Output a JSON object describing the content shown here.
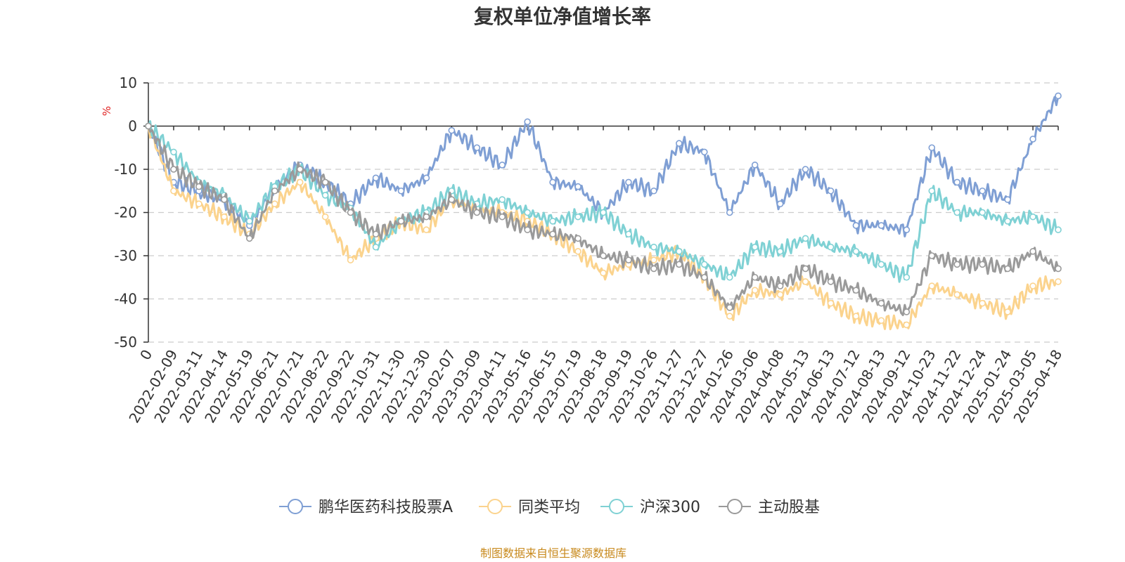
{
  "chart_data": {
    "type": "line",
    "title": "复权单位净值增长率",
    "ylabel": "%",
    "ylim": [
      -50,
      10
    ],
    "yticks": [
      "10",
      "0",
      "-10",
      "-20",
      "-30",
      "-40",
      "-50"
    ],
    "y_tick_values": [
      10,
      0,
      -10,
      -20,
      -30,
      -40,
      -50
    ],
    "grid": true,
    "legend_position": "bottom",
    "source": "制图数据来自恒生聚源数据库",
    "x": [
      "0",
      "2022-02-09",
      "2022-03-11",
      "2022-04-14",
      "2022-05-19",
      "2022-06-21",
      "2022-07-21",
      "2022-08-22",
      "2022-09-22",
      "2022-10-31",
      "2022-11-30",
      "2022-12-30",
      "2023-02-07",
      "2023-03-09",
      "2023-04-11",
      "2023-05-16",
      "2023-06-15",
      "2023-07-19",
      "2023-08-18",
      "2023-09-19",
      "2023-10-26",
      "2023-11-27",
      "2023-12-27",
      "2024-01-26",
      "2024-03-06",
      "2024-04-08",
      "2024-05-13",
      "2024-06-13",
      "2024-07-12",
      "2024-08-13",
      "2024-09-12",
      "2024-10-23",
      "2024-11-22",
      "2024-12-24",
      "2025-01-24",
      "2025-03-05",
      "2025-04-18"
    ],
    "series": [
      {
        "name": "鹏华医药科技股票A",
        "color": "#7f9fd4",
        "values": [
          0,
          -13,
          -15,
          -17,
          -23,
          -14,
          -9,
          -13,
          -18,
          -12,
          -15,
          -12,
          -1,
          -5,
          -9,
          1,
          -13,
          -14,
          -20,
          -13,
          -15,
          -4,
          -6,
          -20,
          -9,
          -18,
          -10,
          -15,
          -23,
          -23,
          -24,
          -5,
          -13,
          -15,
          -17,
          -3,
          7
        ]
      },
      {
        "name": "同类平均",
        "color": "#fbd38d",
        "values": [
          0,
          -15,
          -18,
          -21,
          -25,
          -18,
          -13,
          -21,
          -31,
          -26,
          -22,
          -24,
          -17,
          -19,
          -20,
          -22,
          -25,
          -29,
          -34,
          -32,
          -31,
          -29,
          -35,
          -44,
          -38,
          -39,
          -36,
          -41,
          -44,
          -45,
          -46,
          -37,
          -39,
          -41,
          -43,
          -37,
          -36
        ]
      },
      {
        "name": "沪深300",
        "color": "#7fd1d4",
        "values": [
          0,
          -6,
          -13,
          -16,
          -22,
          -14,
          -10,
          -16,
          -19,
          -28,
          -22,
          -20,
          -15,
          -18,
          -17,
          -20,
          -22,
          -21,
          -20,
          -25,
          -28,
          -29,
          -32,
          -35,
          -28,
          -29,
          -26,
          -28,
          -29,
          -32,
          -35,
          -15,
          -20,
          -20,
          -22,
          -21,
          -24
        ]
      },
      {
        "name": "主动股基",
        "color": "#9a9a9a",
        "values": [
          0,
          -10,
          -14,
          -17,
          -26,
          -15,
          -10,
          -13,
          -20,
          -25,
          -22,
          -21,
          -17,
          -20,
          -21,
          -24,
          -25,
          -26,
          -30,
          -31,
          -33,
          -32,
          -35,
          -42,
          -35,
          -37,
          -33,
          -36,
          -38,
          -41,
          -43,
          -30,
          -32,
          -32,
          -33,
          -29,
          -33
        ]
      }
    ]
  }
}
